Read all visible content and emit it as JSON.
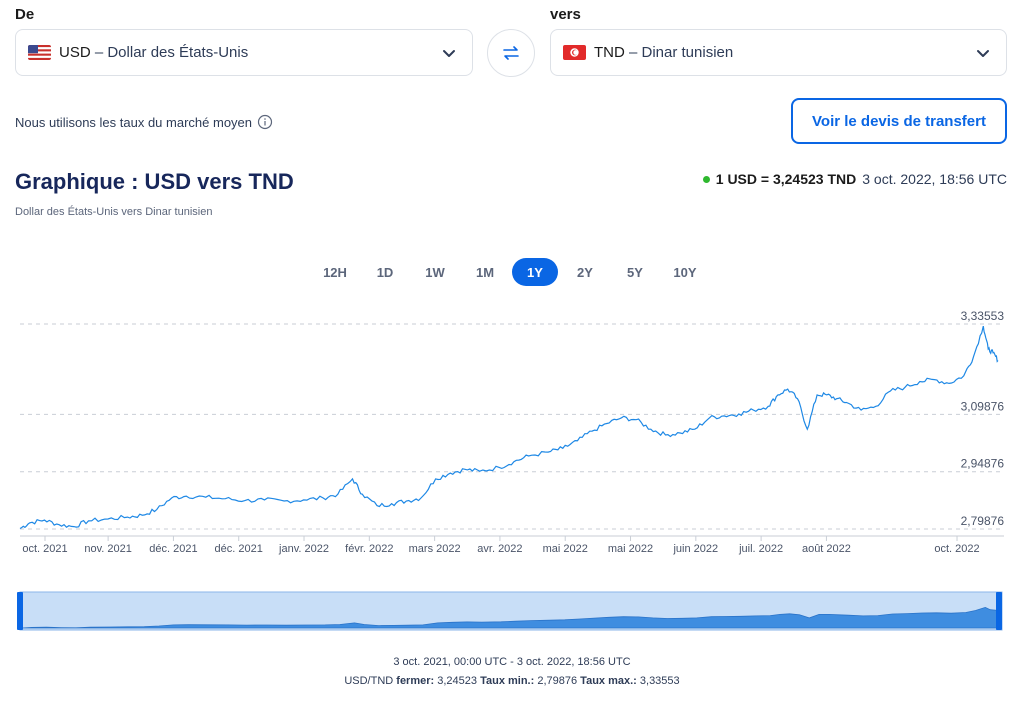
{
  "from": {
    "label": "De",
    "code": "USD",
    "name": " – Dollar des États-Unis"
  },
  "to": {
    "label": "vers",
    "code": "TND",
    "name": " – Dinar tunisien"
  },
  "note": "Nous utilisons les taux du marché moyen",
  "quote_button": "Voir le devis de transfert",
  "title": "Graphique : USD vers TND",
  "subtitle": "Dollar des États-Unis vers Dinar tunisien",
  "rate": {
    "strong": "1 USD = 3,24523 TND",
    "time": "3 oct. 2022, 18:56 UTC"
  },
  "ranges": [
    {
      "label": "12H",
      "active": false
    },
    {
      "label": "1D",
      "active": false
    },
    {
      "label": "1W",
      "active": false
    },
    {
      "label": "1M",
      "active": false
    },
    {
      "label": "1Y",
      "active": true
    },
    {
      "label": "2Y",
      "active": false
    },
    {
      "label": "5Y",
      "active": false
    },
    {
      "label": "10Y",
      "active": false
    }
  ],
  "footer": {
    "period": "3 oct. 2021, 00:00 UTC - 3 oct. 2022, 18:56 UTC",
    "pair": "USD/TND",
    "close_label": "fermer:",
    "close_value": "3,24523",
    "min_label": "Taux min.:",
    "min_value": "2,79876",
    "max_label": "Taux max.:",
    "max_value": "3,33553"
  },
  "colors": {
    "accent": "#0a66e4",
    "line": "#1e88e5",
    "live_dot": "#2eb82e"
  },
  "chart_data": {
    "type": "line",
    "y_ticks": [
      {
        "value": 3.33553,
        "label": "3,33553"
      },
      {
        "value": 3.09876,
        "label": "3,09876"
      },
      {
        "value": 2.94876,
        "label": "2,94876"
      },
      {
        "value": 2.79876,
        "label": "2,79876"
      }
    ],
    "x_ticks": [
      {
        "x": "2021-10-03",
        "label": "oct. 2021"
      },
      {
        "x": "2021-11-01",
        "label": "nov. 2021"
      },
      {
        "x": "2021-12-01",
        "label": "déc. 2021"
      },
      {
        "x": "2021-12-31",
        "label": "déc. 2021"
      },
      {
        "x": "2022-01-30",
        "label": "janv. 2022"
      },
      {
        "x": "2022-03-01",
        "label": "févr. 2022"
      },
      {
        "x": "2022-03-31",
        "label": "mars 2022"
      },
      {
        "x": "2022-04-30",
        "label": "avr. 2022"
      },
      {
        "x": "2022-05-30",
        "label": "mai 2022"
      },
      {
        "x": "2022-06-29",
        "label": "mai 2022"
      },
      {
        "x": "2022-07-29",
        "label": "juin 2022"
      },
      {
        "x": "2022-08-28",
        "label": "juil. 2022"
      },
      {
        "x": "2022-09-27",
        "label": "août 2022"
      },
      {
        "x": "2022-11-26",
        "label": "oct. 2022"
      }
    ],
    "ylim": [
      2.79876,
      3.33553
    ],
    "series": [
      {
        "values": [
          [
            0,
            2.8
          ],
          [
            10,
            2.815
          ],
          [
            25,
            2.822
          ],
          [
            40,
            2.81
          ],
          [
            55,
            2.805
          ],
          [
            70,
            2.82
          ],
          [
            90,
            2.825
          ],
          [
            110,
            2.83
          ],
          [
            125,
            2.835
          ],
          [
            140,
            2.85
          ],
          [
            155,
            2.88
          ],
          [
            170,
            2.885
          ],
          [
            190,
            2.882
          ],
          [
            210,
            2.878
          ],
          [
            230,
            2.873
          ],
          [
            250,
            2.875
          ],
          [
            270,
            2.872
          ],
          [
            290,
            2.875
          ],
          [
            310,
            2.88
          ],
          [
            325,
            2.89
          ],
          [
            340,
            2.93
          ],
          [
            350,
            2.89
          ],
          [
            365,
            2.86
          ],
          [
            380,
            2.865
          ],
          [
            395,
            2.872
          ],
          [
            410,
            2.88
          ],
          [
            425,
            2.93
          ],
          [
            440,
            2.945
          ],
          [
            455,
            2.955
          ],
          [
            470,
            2.95
          ],
          [
            490,
            2.96
          ],
          [
            505,
            2.975
          ],
          [
            520,
            2.99
          ],
          [
            540,
            3.0
          ],
          [
            555,
            3.01
          ],
          [
            570,
            3.03
          ],
          [
            585,
            3.055
          ],
          [
            600,
            3.075
          ],
          [
            615,
            3.09
          ],
          [
            630,
            3.085
          ],
          [
            645,
            3.06
          ],
          [
            660,
            3.045
          ],
          [
            675,
            3.05
          ],
          [
            690,
            3.06
          ],
          [
            705,
            3.09
          ],
          [
            720,
            3.095
          ],
          [
            735,
            3.1
          ],
          [
            750,
            3.11
          ],
          [
            765,
            3.12
          ],
          [
            775,
            3.15
          ],
          [
            785,
            3.165
          ],
          [
            795,
            3.14
          ],
          [
            805,
            3.06
          ],
          [
            815,
            3.15
          ],
          [
            825,
            3.15
          ],
          [
            835,
            3.14
          ],
          [
            845,
            3.13
          ],
          [
            860,
            3.11
          ],
          [
            875,
            3.12
          ],
          [
            890,
            3.16
          ],
          [
            905,
            3.17
          ],
          [
            920,
            3.185
          ],
          [
            935,
            3.19
          ],
          [
            950,
            3.18
          ],
          [
            965,
            3.2
          ],
          [
            975,
            3.25
          ],
          [
            985,
            3.33
          ],
          [
            990,
            3.27
          ],
          [
            995,
            3.26
          ],
          [
            1000,
            3.24
          ]
        ]
      }
    ]
  }
}
